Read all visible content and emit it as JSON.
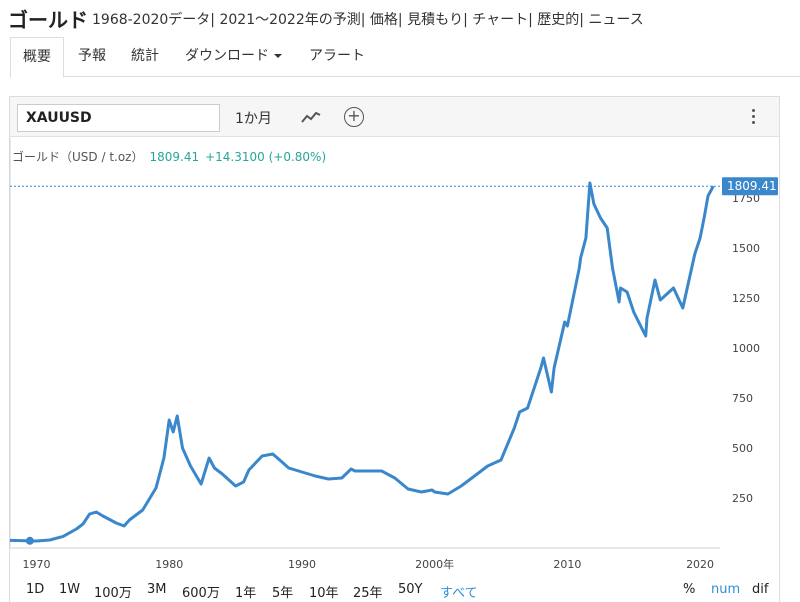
{
  "header": {
    "title": "ゴールド",
    "subtitle": "1968-2020データ| 2021～2022年の予測| 価格| 見積もり| チャート| 歴史的| ニュース"
  },
  "tabs": [
    {
      "label": "概要"
    },
    {
      "label": "予報"
    },
    {
      "label": "統計"
    },
    {
      "label": "ダウンロード"
    },
    {
      "label": "アラート"
    }
  ],
  "toolbar": {
    "symbol": "XAUUSD",
    "range_label": "1か月",
    "chart_type_icon": "line-chart-icon",
    "add_icon": "plus-circle-icon",
    "menu_icon": "kebab-icon"
  },
  "legend": {
    "name": "ゴールド（USD / t.oz）",
    "price": "1809.41",
    "change": "+14.3100 (+0.80%)"
  },
  "price_tag": "1809.41",
  "ranges": [
    "1D",
    "1W",
    "100万",
    "3M",
    "600万",
    "1年",
    "5年",
    "10年",
    "25年",
    "50Y",
    "すべて"
  ],
  "selected_range": "すべて",
  "modes": [
    "%",
    "num",
    "dif"
  ],
  "selected_mode": "num",
  "colors": {
    "line": "#3a87cc",
    "accent": "#2f8fd6",
    "tag": "#3a87cc"
  },
  "chart_data": {
    "type": "line",
    "title": "",
    "xlabel": "",
    "ylabel": "",
    "ylim": [
      0,
      1900
    ],
    "xlim": [
      1968,
      2021.2
    ],
    "x_ticks": [
      {
        "value": 1970,
        "label": "1970"
      },
      {
        "value": 1980,
        "label": "1980"
      },
      {
        "value": 1990,
        "label": "1990"
      },
      {
        "value": 2000,
        "label": "2000年"
      },
      {
        "value": 2010,
        "label": "2010"
      },
      {
        "value": 2020,
        "label": "2020"
      }
    ],
    "y_ticks": [
      250,
      500,
      750,
      1000,
      1250,
      1500,
      1750
    ],
    "series": [
      {
        "x": [
          1968,
          1970,
          1971,
          1972,
          1973,
          1973.5,
          1974,
          1974.5,
          1975,
          1976,
          1976.6,
          1977,
          1978,
          1979,
          1979.6,
          1980.0,
          1980.3,
          1980.6,
          1981,
          1981.6,
          1982.4,
          1983,
          1983.4,
          1984,
          1985,
          1985.6,
          1986,
          1987,
          1987.8,
          1988.5,
          1989,
          1990,
          1991,
          1992,
          1993,
          1993.7,
          1994,
          1995,
          1996,
          1997,
          1998,
          1999,
          1999.8,
          2000,
          2001,
          2002,
          2003,
          2004,
          2005,
          2006,
          2006.4,
          2007,
          2008,
          2008.2,
          2008.8,
          2009,
          2009.8,
          2010,
          2010.9,
          2011,
          2011.4,
          2011.7,
          2012,
          2012.5,
          2013,
          2013.4,
          2013.9,
          2014,
          2014.5,
          2015,
          2015.9,
          2016,
          2016.6,
          2017,
          2018,
          2018.7,
          2019,
          2019.6,
          2020,
          2020.3,
          2020.6,
          2021
        ],
        "y": [
          38,
          35,
          40,
          58,
          95,
          120,
          170,
          180,
          160,
          125,
          110,
          140,
          190,
          300,
          450,
          640,
          580,
          660,
          500,
          410,
          320,
          450,
          400,
          370,
          310,
          330,
          390,
          460,
          470,
          430,
          400,
          380,
          360,
          345,
          350,
          395,
          385,
          385,
          385,
          350,
          295,
          280,
          290,
          280,
          270,
          310,
          360,
          410,
          440,
          600,
          680,
          700,
          900,
          950,
          780,
          900,
          1130,
          1110,
          1400,
          1450,
          1550,
          1825,
          1720,
          1650,
          1600,
          1400,
          1230,
          1300,
          1280,
          1180,
          1060,
          1150,
          1340,
          1240,
          1300,
          1200,
          1290,
          1470,
          1550,
          1650,
          1760,
          1809
        ]
      }
    ]
  }
}
